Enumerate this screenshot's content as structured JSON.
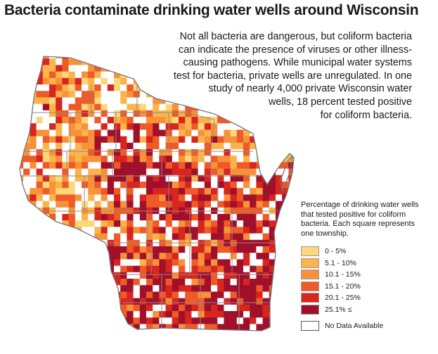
{
  "title": "Bacteria contaminate drinking water wells around Wisconsin",
  "description": "Not all bacteria are dangerous, but coliform bacteria can indicate the presence of viruses or other illness-causing pathogens. While municipal water systems test for bacteria, private wells are unregulated. In one study of nearly 4,000 private Wisconsin water wells, 18 percent tested positive for coliform bacteria.",
  "description_lines": [
    "Not all bacteria are dangerous, but coliform bacteria",
    "can indicate the presence of viruses or other illness-",
    "causing pathogens. While municipal water systems",
    "test for bacteria, private wells are unregulated. In one",
    "study of nearly 4,000 private Wisconsin water",
    "wells, 18 percent tested positive",
    "for coliform bacteria."
  ],
  "legend": {
    "title": "Percentage of drinking water wells that tested positive for coliform bacteria. Each square represents one township.",
    "classes": [
      {
        "label": "0 - 5%",
        "color": "#fdd77a"
      },
      {
        "label": "5.1 - 10%",
        "color": "#fbb44c"
      },
      {
        "label": "10.1 - 15%",
        "color": "#f7923a"
      },
      {
        "label": "15.1 - 20%",
        "color": "#ee5a28"
      },
      {
        "label": "20.1 - 25%",
        "color": "#d7251f"
      },
      {
        "label": "25.1% ≤",
        "color": "#a0102a"
      }
    ],
    "no_data": {
      "label": "No Data Available",
      "color": "#ffffff"
    }
  },
  "colors": {
    "county_border": "#8c8c8c",
    "state_outline": "#777777"
  }
}
